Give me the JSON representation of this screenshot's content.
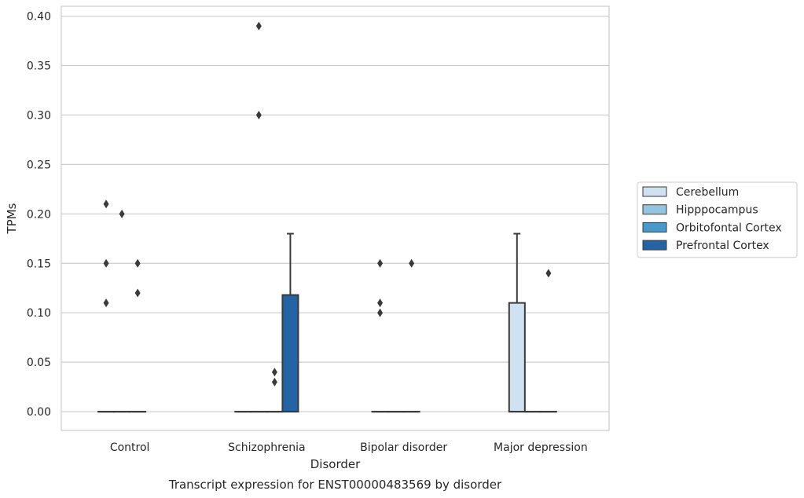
{
  "chart_data": {
    "type": "box",
    "xlabel": "Disorder",
    "ylabel": "TPMs",
    "caption": "Transcript expression for ENST00000483569 by disorder",
    "ylim": [
      -0.019,
      0.41
    ],
    "yticks": [
      "0.00",
      "0.05",
      "0.10",
      "0.15",
      "0.20",
      "0.25",
      "0.30",
      "0.35",
      "0.40"
    ],
    "grid": "horizontal",
    "legend_position": "right",
    "categories": [
      "Control",
      "Schizophrenia",
      "Bipolar disorder",
      "Major depression"
    ],
    "series": [
      {
        "name": "Cerebellum",
        "color": "#d0e1f2",
        "boxes": [
          {
            "q1": 0,
            "median": 0,
            "q3": 0,
            "whisker_low": 0,
            "whisker_high": 0,
            "outliers": [
              0.11,
              0.15,
              0.21
            ]
          },
          {
            "q1": 0,
            "median": 0,
            "q3": 0,
            "whisker_low": 0,
            "whisker_high": 0,
            "outliers": []
          },
          {
            "q1": 0,
            "median": 0,
            "q3": 0,
            "whisker_low": 0,
            "whisker_high": 0,
            "outliers": [
              0.1,
              0.11,
              0.15
            ]
          },
          {
            "q1": 0,
            "median": 0,
            "q3": 0.11,
            "whisker_low": 0,
            "whisker_high": 0.18,
            "outliers": []
          }
        ]
      },
      {
        "name": "Hipppocampus",
        "color": "#94c4df",
        "boxes": [
          {
            "q1": 0,
            "median": 0,
            "q3": 0,
            "whisker_low": 0,
            "whisker_high": 0,
            "outliers": [
              0.2
            ]
          },
          {
            "q1": 0,
            "median": 0,
            "q3": 0,
            "whisker_low": 0,
            "whisker_high": 0,
            "outliers": [
              0.3,
              0.39
            ]
          },
          {
            "q1": 0,
            "median": 0,
            "q3": 0,
            "whisker_low": 0,
            "whisker_high": 0,
            "outliers": []
          },
          {
            "q1": 0,
            "median": 0,
            "q3": 0,
            "whisker_low": 0,
            "whisker_high": 0,
            "outliers": []
          }
        ]
      },
      {
        "name": "Orbitofontal Cortex",
        "color": "#4a98c9",
        "boxes": [
          {
            "q1": 0,
            "median": 0,
            "q3": 0,
            "whisker_low": 0,
            "whisker_high": 0,
            "outliers": [
              0.12,
              0.15
            ]
          },
          {
            "q1": 0,
            "median": 0,
            "q3": 0,
            "whisker_low": 0,
            "whisker_high": 0,
            "outliers": [
              0.03,
              0.04
            ]
          },
          {
            "q1": 0,
            "median": 0,
            "q3": 0,
            "whisker_low": 0,
            "whisker_high": 0,
            "outliers": [
              0.15
            ]
          },
          {
            "q1": 0,
            "median": 0,
            "q3": 0,
            "whisker_low": 0,
            "whisker_high": 0,
            "outliers": [
              0.14
            ]
          }
        ]
      },
      {
        "name": "Prefrontal Cortex",
        "color": "#2464a6",
        "boxes": [
          null,
          {
            "q1": 0,
            "median": 0,
            "q3": 0.118,
            "whisker_low": 0,
            "whisker_high": 0.18,
            "outliers": []
          },
          null,
          null
        ]
      }
    ]
  }
}
